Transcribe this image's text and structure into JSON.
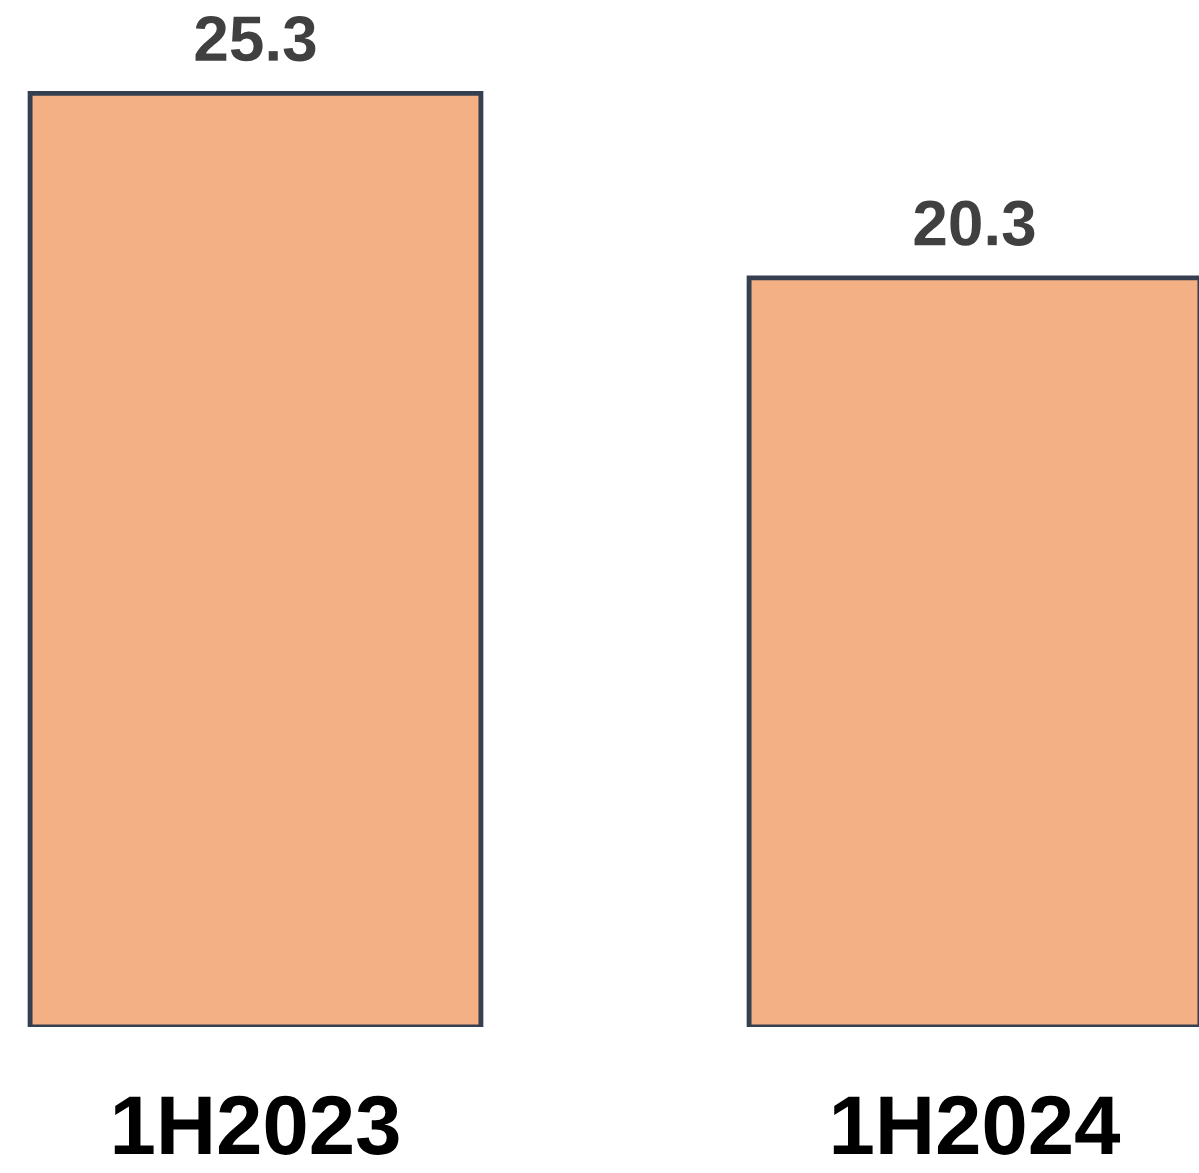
{
  "chart_data": {
    "type": "bar",
    "categories": [
      "1H2023",
      "1H2024"
    ],
    "values": [
      25.3,
      20.3
    ],
    "color": "#f3b085",
    "data_labels": true,
    "grid": false
  }
}
